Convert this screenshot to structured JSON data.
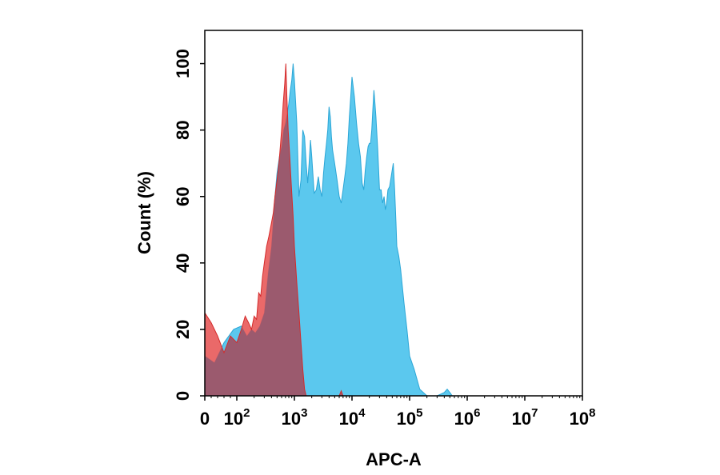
{
  "chart_data": {
    "type": "area",
    "xlabel": "APC-A",
    "ylabel": "Count  (%)",
    "x_scale": "biexponential",
    "x_ticks": [
      {
        "value": 0,
        "base": "0",
        "exp": ""
      },
      {
        "value": 100,
        "base": "10",
        "exp": "2"
      },
      {
        "value": 1000,
        "base": "10",
        "exp": "3"
      },
      {
        "value": 10000,
        "base": "10",
        "exp": "4"
      },
      {
        "value": 100000,
        "base": "10",
        "exp": "5"
      },
      {
        "value": 1000000,
        "base": "10",
        "exp": "6"
      },
      {
        "value": 10000000,
        "base": "10",
        "exp": "7"
      },
      {
        "value": 100000000,
        "base": "10",
        "exp": "8"
      }
    ],
    "y_ticks": [
      "0",
      "20",
      "40",
      "60",
      "80",
      "100"
    ],
    "ylim": [
      0,
      110
    ],
    "grid": false,
    "legend": "none",
    "series": [
      {
        "color": "#5bc8ee",
        "stroke": "#2ba6d6",
        "points": [
          [
            0,
            12
          ],
          [
            30,
            10
          ],
          [
            60,
            16
          ],
          [
            90,
            20
          ],
          [
            120,
            21
          ],
          [
            150,
            18
          ],
          [
            180,
            20
          ],
          [
            210,
            19
          ],
          [
            250,
            21
          ],
          [
            300,
            25
          ],
          [
            350,
            37
          ],
          [
            400,
            45
          ],
          [
            450,
            58
          ],
          [
            500,
            67
          ],
          [
            550,
            72
          ],
          [
            600,
            75
          ],
          [
            650,
            80
          ],
          [
            700,
            82
          ],
          [
            750,
            85
          ],
          [
            800,
            88
          ],
          [
            850,
            92
          ],
          [
            900,
            95
          ],
          [
            950,
            100
          ],
          [
            1000,
            95
          ],
          [
            1100,
            82
          ],
          [
            1200,
            60
          ],
          [
            1300,
            65
          ],
          [
            1400,
            80
          ],
          [
            1500,
            78
          ],
          [
            1600,
            70
          ],
          [
            1700,
            64
          ],
          [
            1800,
            70
          ],
          [
            1900,
            77
          ],
          [
            2000,
            72
          ],
          [
            2200,
            61
          ],
          [
            2400,
            62
          ],
          [
            2600,
            66
          ],
          [
            2800,
            62
          ],
          [
            3000,
            60
          ],
          [
            3200,
            67
          ],
          [
            3400,
            72
          ],
          [
            3600,
            76
          ],
          [
            3800,
            80
          ],
          [
            4000,
            87
          ],
          [
            4200,
            84
          ],
          [
            4400,
            78
          ],
          [
            4600,
            74
          ],
          [
            4800,
            72
          ],
          [
            5000,
            70
          ],
          [
            5500,
            65
          ],
          [
            6000,
            60
          ],
          [
            6500,
            58
          ],
          [
            7000,
            62
          ],
          [
            7500,
            66
          ],
          [
            8000,
            70
          ],
          [
            8500,
            76
          ],
          [
            9000,
            84
          ],
          [
            9500,
            90
          ],
          [
            10000,
            96
          ],
          [
            11000,
            90
          ],
          [
            12000,
            82
          ],
          [
            13000,
            76
          ],
          [
            14000,
            72
          ],
          [
            15000,
            64
          ],
          [
            16000,
            62
          ],
          [
            17000,
            68
          ],
          [
            18000,
            72
          ],
          [
            19000,
            75
          ],
          [
            20000,
            76
          ],
          [
            21000,
            76
          ],
          [
            22000,
            80
          ],
          [
            23000,
            86
          ],
          [
            24000,
            92
          ],
          [
            25000,
            88
          ],
          [
            26000,
            84
          ],
          [
            28000,
            74
          ],
          [
            30000,
            62
          ],
          [
            32000,
            62
          ],
          [
            34000,
            58
          ],
          [
            36000,
            60
          ],
          [
            38000,
            56
          ],
          [
            40000,
            58
          ],
          [
            42000,
            62
          ],
          [
            45000,
            63
          ],
          [
            48000,
            66
          ],
          [
            50000,
            68
          ],
          [
            52000,
            70
          ],
          [
            55000,
            62
          ],
          [
            58000,
            52
          ],
          [
            60000,
            45
          ],
          [
            65000,
            42
          ],
          [
            70000,
            38
          ],
          [
            80000,
            28
          ],
          [
            90000,
            20
          ],
          [
            100000,
            12
          ],
          [
            120000,
            8
          ],
          [
            150000,
            2
          ],
          [
            200000,
            0
          ],
          [
            300000,
            0
          ],
          [
            400000,
            1
          ],
          [
            450000,
            2
          ],
          [
            500000,
            1
          ],
          [
            550000,
            0
          ]
        ]
      },
      {
        "color": "#e85c5c",
        "stroke": "#d42a2a",
        "points": [
          [
            0,
            25
          ],
          [
            20,
            22
          ],
          [
            40,
            18
          ],
          [
            60,
            13
          ],
          [
            80,
            18
          ],
          [
            100,
            16
          ],
          [
            120,
            20
          ],
          [
            140,
            24
          ],
          [
            160,
            22
          ],
          [
            180,
            20
          ],
          [
            200,
            24
          ],
          [
            220,
            23
          ],
          [
            240,
            31
          ],
          [
            260,
            30
          ],
          [
            280,
            36
          ],
          [
            300,
            40
          ],
          [
            330,
            45
          ],
          [
            360,
            48
          ],
          [
            400,
            52
          ],
          [
            430,
            55
          ],
          [
            460,
            60
          ],
          [
            500,
            65
          ],
          [
            540,
            70
          ],
          [
            570,
            75
          ],
          [
            600,
            80
          ],
          [
            640,
            88
          ],
          [
            680,
            94
          ],
          [
            710,
            100
          ],
          [
            740,
            90
          ],
          [
            780,
            80
          ],
          [
            830,
            72
          ],
          [
            880,
            64
          ],
          [
            950,
            54
          ],
          [
            1000,
            45
          ],
          [
            1100,
            34
          ],
          [
            1200,
            25
          ],
          [
            1300,
            16
          ],
          [
            1400,
            8
          ],
          [
            1500,
            2
          ],
          [
            1600,
            0
          ],
          [
            6000,
            0
          ],
          [
            6500,
            1.5
          ],
          [
            7000,
            0
          ]
        ]
      },
      {
        "color": "#9b5a6e",
        "stroke": "none",
        "points": []
      }
    ]
  }
}
